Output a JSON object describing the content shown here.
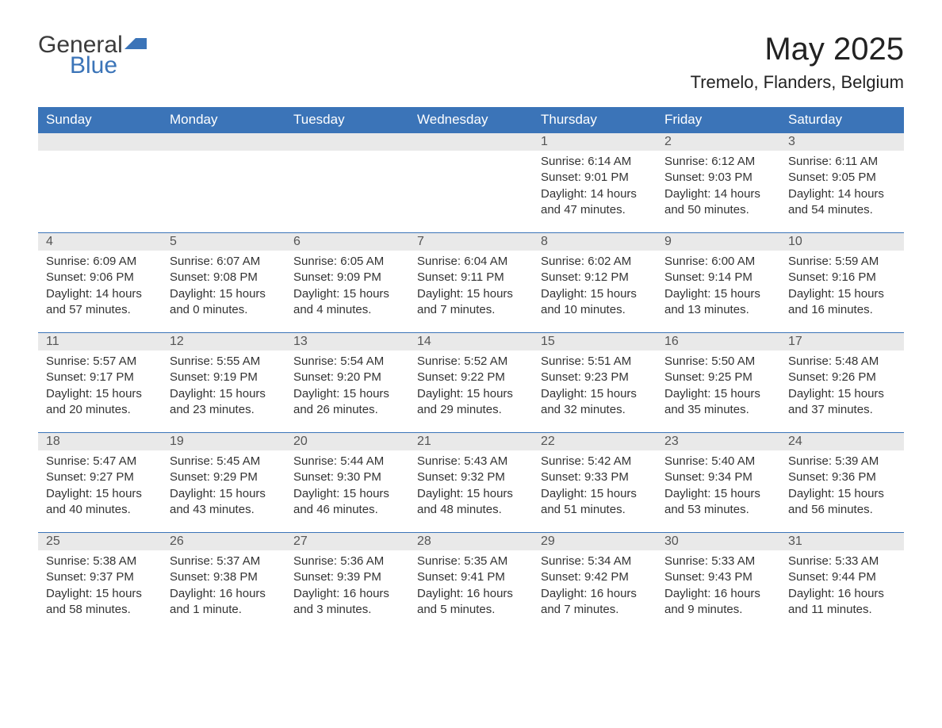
{
  "logo": {
    "part1": "General",
    "part2": "Blue"
  },
  "title": "May 2025",
  "location": "Tremelo, Flanders, Belgium",
  "colors": {
    "header_bg": "#3b74b8",
    "header_text": "#ffffff",
    "daynum_bg": "#e9e9e9",
    "text": "#333333",
    "page_bg": "#ffffff",
    "accent": "#3b74b8"
  },
  "day_headers": [
    "Sunday",
    "Monday",
    "Tuesday",
    "Wednesday",
    "Thursday",
    "Friday",
    "Saturday"
  ],
  "weeks": [
    [
      {
        "n": "",
        "sunrise": "",
        "sunset": "",
        "daylight": ""
      },
      {
        "n": "",
        "sunrise": "",
        "sunset": "",
        "daylight": ""
      },
      {
        "n": "",
        "sunrise": "",
        "sunset": "",
        "daylight": ""
      },
      {
        "n": "",
        "sunrise": "",
        "sunset": "",
        "daylight": ""
      },
      {
        "n": "1",
        "sunrise": "Sunrise: 6:14 AM",
        "sunset": "Sunset: 9:01 PM",
        "daylight": "Daylight: 14 hours and 47 minutes."
      },
      {
        "n": "2",
        "sunrise": "Sunrise: 6:12 AM",
        "sunset": "Sunset: 9:03 PM",
        "daylight": "Daylight: 14 hours and 50 minutes."
      },
      {
        "n": "3",
        "sunrise": "Sunrise: 6:11 AM",
        "sunset": "Sunset: 9:05 PM",
        "daylight": "Daylight: 14 hours and 54 minutes."
      }
    ],
    [
      {
        "n": "4",
        "sunrise": "Sunrise: 6:09 AM",
        "sunset": "Sunset: 9:06 PM",
        "daylight": "Daylight: 14 hours and 57 minutes."
      },
      {
        "n": "5",
        "sunrise": "Sunrise: 6:07 AM",
        "sunset": "Sunset: 9:08 PM",
        "daylight": "Daylight: 15 hours and 0 minutes."
      },
      {
        "n": "6",
        "sunrise": "Sunrise: 6:05 AM",
        "sunset": "Sunset: 9:09 PM",
        "daylight": "Daylight: 15 hours and 4 minutes."
      },
      {
        "n": "7",
        "sunrise": "Sunrise: 6:04 AM",
        "sunset": "Sunset: 9:11 PM",
        "daylight": "Daylight: 15 hours and 7 minutes."
      },
      {
        "n": "8",
        "sunrise": "Sunrise: 6:02 AM",
        "sunset": "Sunset: 9:12 PM",
        "daylight": "Daylight: 15 hours and 10 minutes."
      },
      {
        "n": "9",
        "sunrise": "Sunrise: 6:00 AM",
        "sunset": "Sunset: 9:14 PM",
        "daylight": "Daylight: 15 hours and 13 minutes."
      },
      {
        "n": "10",
        "sunrise": "Sunrise: 5:59 AM",
        "sunset": "Sunset: 9:16 PM",
        "daylight": "Daylight: 15 hours and 16 minutes."
      }
    ],
    [
      {
        "n": "11",
        "sunrise": "Sunrise: 5:57 AM",
        "sunset": "Sunset: 9:17 PM",
        "daylight": "Daylight: 15 hours and 20 minutes."
      },
      {
        "n": "12",
        "sunrise": "Sunrise: 5:55 AM",
        "sunset": "Sunset: 9:19 PM",
        "daylight": "Daylight: 15 hours and 23 minutes."
      },
      {
        "n": "13",
        "sunrise": "Sunrise: 5:54 AM",
        "sunset": "Sunset: 9:20 PM",
        "daylight": "Daylight: 15 hours and 26 minutes."
      },
      {
        "n": "14",
        "sunrise": "Sunrise: 5:52 AM",
        "sunset": "Sunset: 9:22 PM",
        "daylight": "Daylight: 15 hours and 29 minutes."
      },
      {
        "n": "15",
        "sunrise": "Sunrise: 5:51 AM",
        "sunset": "Sunset: 9:23 PM",
        "daylight": "Daylight: 15 hours and 32 minutes."
      },
      {
        "n": "16",
        "sunrise": "Sunrise: 5:50 AM",
        "sunset": "Sunset: 9:25 PM",
        "daylight": "Daylight: 15 hours and 35 minutes."
      },
      {
        "n": "17",
        "sunrise": "Sunrise: 5:48 AM",
        "sunset": "Sunset: 9:26 PM",
        "daylight": "Daylight: 15 hours and 37 minutes."
      }
    ],
    [
      {
        "n": "18",
        "sunrise": "Sunrise: 5:47 AM",
        "sunset": "Sunset: 9:27 PM",
        "daylight": "Daylight: 15 hours and 40 minutes."
      },
      {
        "n": "19",
        "sunrise": "Sunrise: 5:45 AM",
        "sunset": "Sunset: 9:29 PM",
        "daylight": "Daylight: 15 hours and 43 minutes."
      },
      {
        "n": "20",
        "sunrise": "Sunrise: 5:44 AM",
        "sunset": "Sunset: 9:30 PM",
        "daylight": "Daylight: 15 hours and 46 minutes."
      },
      {
        "n": "21",
        "sunrise": "Sunrise: 5:43 AM",
        "sunset": "Sunset: 9:32 PM",
        "daylight": "Daylight: 15 hours and 48 minutes."
      },
      {
        "n": "22",
        "sunrise": "Sunrise: 5:42 AM",
        "sunset": "Sunset: 9:33 PM",
        "daylight": "Daylight: 15 hours and 51 minutes."
      },
      {
        "n": "23",
        "sunrise": "Sunrise: 5:40 AM",
        "sunset": "Sunset: 9:34 PM",
        "daylight": "Daylight: 15 hours and 53 minutes."
      },
      {
        "n": "24",
        "sunrise": "Sunrise: 5:39 AM",
        "sunset": "Sunset: 9:36 PM",
        "daylight": "Daylight: 15 hours and 56 minutes."
      }
    ],
    [
      {
        "n": "25",
        "sunrise": "Sunrise: 5:38 AM",
        "sunset": "Sunset: 9:37 PM",
        "daylight": "Daylight: 15 hours and 58 minutes."
      },
      {
        "n": "26",
        "sunrise": "Sunrise: 5:37 AM",
        "sunset": "Sunset: 9:38 PM",
        "daylight": "Daylight: 16 hours and 1 minute."
      },
      {
        "n": "27",
        "sunrise": "Sunrise: 5:36 AM",
        "sunset": "Sunset: 9:39 PM",
        "daylight": "Daylight: 16 hours and 3 minutes."
      },
      {
        "n": "28",
        "sunrise": "Sunrise: 5:35 AM",
        "sunset": "Sunset: 9:41 PM",
        "daylight": "Daylight: 16 hours and 5 minutes."
      },
      {
        "n": "29",
        "sunrise": "Sunrise: 5:34 AM",
        "sunset": "Sunset: 9:42 PM",
        "daylight": "Daylight: 16 hours and 7 minutes."
      },
      {
        "n": "30",
        "sunrise": "Sunrise: 5:33 AM",
        "sunset": "Sunset: 9:43 PM",
        "daylight": "Daylight: 16 hours and 9 minutes."
      },
      {
        "n": "31",
        "sunrise": "Sunrise: 5:33 AM",
        "sunset": "Sunset: 9:44 PM",
        "daylight": "Daylight: 16 hours and 11 minutes."
      }
    ]
  ]
}
